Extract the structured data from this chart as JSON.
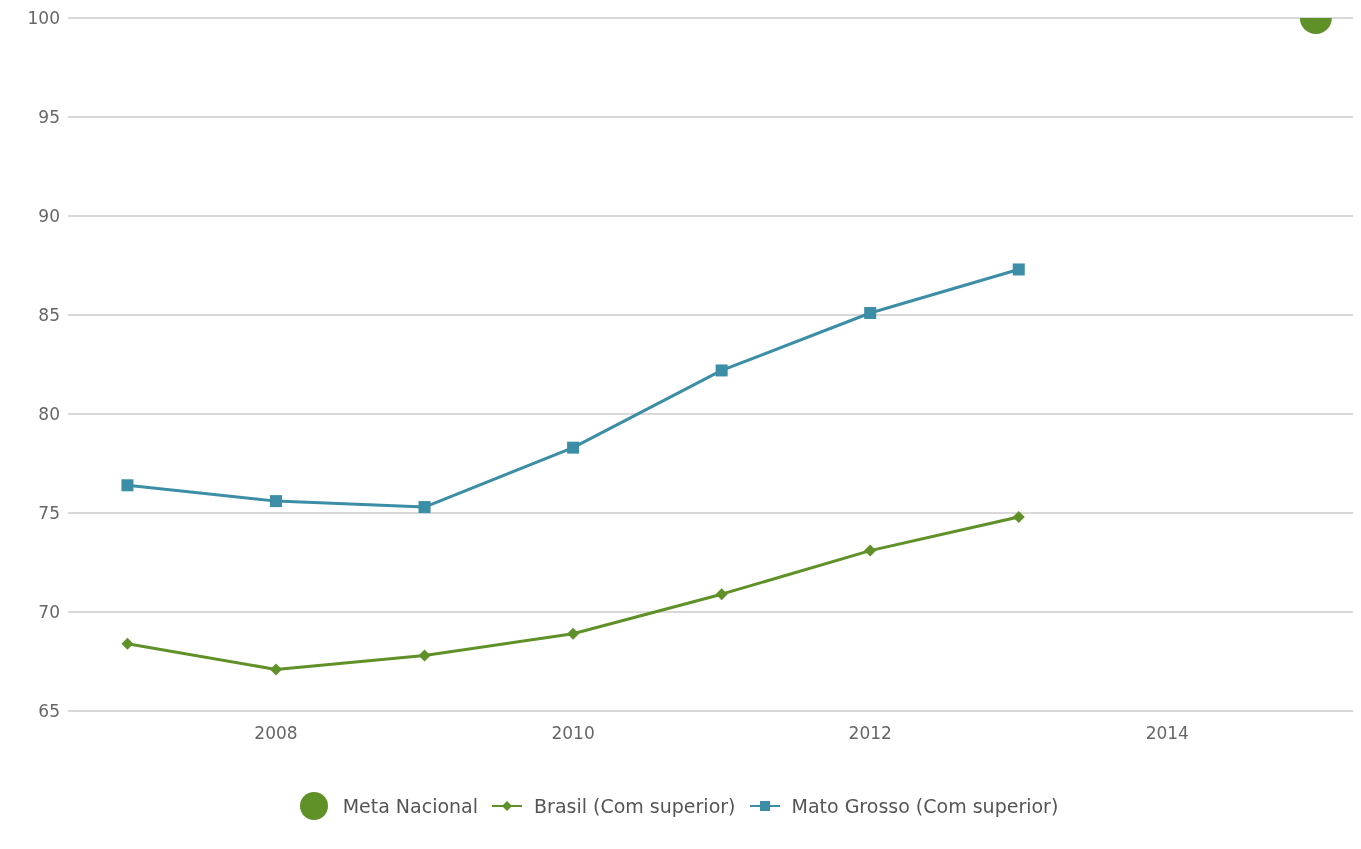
{
  "chart_data": {
    "type": "line",
    "x": [
      2007,
      2008,
      2009,
      2010,
      2011,
      2012,
      2013
    ],
    "xlim": [
      2006.6,
      2015.25
    ],
    "xticks": [
      2008,
      2010,
      2012,
      2014
    ],
    "ylim": [
      65,
      100
    ],
    "yticks": [
      65,
      70,
      75,
      80,
      85,
      90,
      95,
      100
    ],
    "grid": "y",
    "legend": "bottom",
    "series": [
      {
        "name": "Meta Nacional",
        "type": "scatter",
        "marker": "circle",
        "color": "#5f9128",
        "x": [
          2015
        ],
        "values": [
          100
        ]
      },
      {
        "name": "Brasil (Com superior)",
        "marker": "diamond",
        "color": "#5f9128",
        "values": [
          68.4,
          67.1,
          67.8,
          68.9,
          70.9,
          73.1,
          74.8
        ]
      },
      {
        "name": "Mato Grosso (Com superior)",
        "marker": "square",
        "color": "#3b8ea5",
        "values": [
          76.4,
          75.6,
          75.3,
          78.3,
          82.2,
          85.1,
          87.3
        ]
      }
    ]
  }
}
